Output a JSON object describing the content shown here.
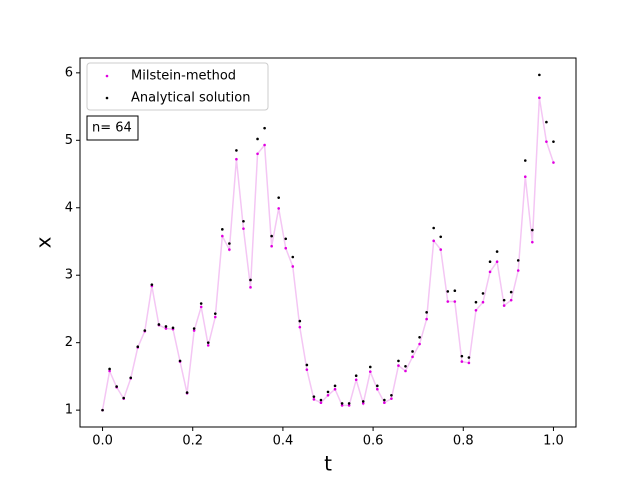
{
  "chart_data": {
    "type": "scatter",
    "x_label": "t",
    "y_label": "x",
    "annotation": "n= 64",
    "line_color": "#f4c6f4",
    "legend": "upper left",
    "xlim": [
      -0.05,
      1.05
    ],
    "ylim": [
      0.75,
      6.22
    ],
    "xticks": [
      {
        "value": 0,
        "label": "0.0"
      },
      0.2,
      0.4,
      0.6,
      0.8,
      {
        "value": 1,
        "label": "1.0"
      }
    ],
    "yticks": [
      1,
      2,
      3,
      4,
      5,
      6
    ],
    "series": [
      {
        "name": "Milstein-method",
        "color": "#e000e0",
        "values": [
          1.0,
          1.58,
          1.34,
          1.17,
          1.47,
          1.93,
          2.17,
          2.84,
          2.26,
          2.21,
          2.2,
          1.72,
          1.25,
          2.18,
          2.53,
          1.96,
          2.38,
          3.58,
          3.38,
          4.72,
          3.69,
          2.82,
          4.8,
          4.93,
          3.43,
          3.99,
          3.4,
          3.13,
          2.23,
          1.6,
          1.16,
          1.11,
          1.22,
          1.31,
          1.07,
          1.07,
          1.45,
          1.1,
          1.57,
          1.31,
          1.11,
          1.17,
          1.66,
          1.58,
          1.79,
          1.98,
          2.35,
          3.51,
          3.38,
          2.61,
          2.61,
          1.72,
          1.7,
          2.48,
          2.6,
          3.05,
          3.2,
          2.55,
          2.63,
          3.07,
          4.46,
          3.49,
          5.63,
          4.98,
          4.67
        ]
      },
      {
        "name": "Analytical solution",
        "color": "#000000",
        "values": [
          1.0,
          1.61,
          1.35,
          1.18,
          1.48,
          1.94,
          2.18,
          2.86,
          2.27,
          2.24,
          2.22,
          1.73,
          1.26,
          2.21,
          2.58,
          2.0,
          2.43,
          3.68,
          3.47,
          4.85,
          3.8,
          2.93,
          5.02,
          5.18,
          3.58,
          4.15,
          3.54,
          3.27,
          2.32,
          1.67,
          1.2,
          1.15,
          1.27,
          1.36,
          1.1,
          1.1,
          1.51,
          1.13,
          1.64,
          1.36,
          1.15,
          1.22,
          1.73,
          1.65,
          1.87,
          2.08,
          2.45,
          3.7,
          3.57,
          2.76,
          2.77,
          1.8,
          1.78,
          2.6,
          2.73,
          3.2,
          3.35,
          2.63,
          2.75,
          3.22,
          4.7,
          3.67,
          5.97,
          5.27,
          4.98
        ]
      }
    ],
    "x": [
      0,
      0.015625,
      0.03125,
      0.046875,
      0.0625,
      0.078125,
      0.09375,
      0.109375,
      0.125,
      0.140625,
      0.15625,
      0.171875,
      0.1875,
      0.203125,
      0.21875,
      0.234375,
      0.25,
      0.265625,
      0.28125,
      0.296875,
      0.3125,
      0.328125,
      0.34375,
      0.359375,
      0.375,
      0.390625,
      0.40625,
      0.421875,
      0.4375,
      0.453125,
      0.46875,
      0.484375,
      0.5,
      0.515625,
      0.53125,
      0.546875,
      0.5625,
      0.578125,
      0.59375,
      0.609375,
      0.625,
      0.640625,
      0.65625,
      0.671875,
      0.6875,
      0.703125,
      0.71875,
      0.734375,
      0.75,
      0.765625,
      0.78125,
      0.796875,
      0.8125,
      0.828125,
      0.84375,
      0.859375,
      0.875,
      0.890625,
      0.90625,
      0.921875,
      0.9375,
      0.953125,
      0.96875,
      0.984375,
      1
    ]
  }
}
